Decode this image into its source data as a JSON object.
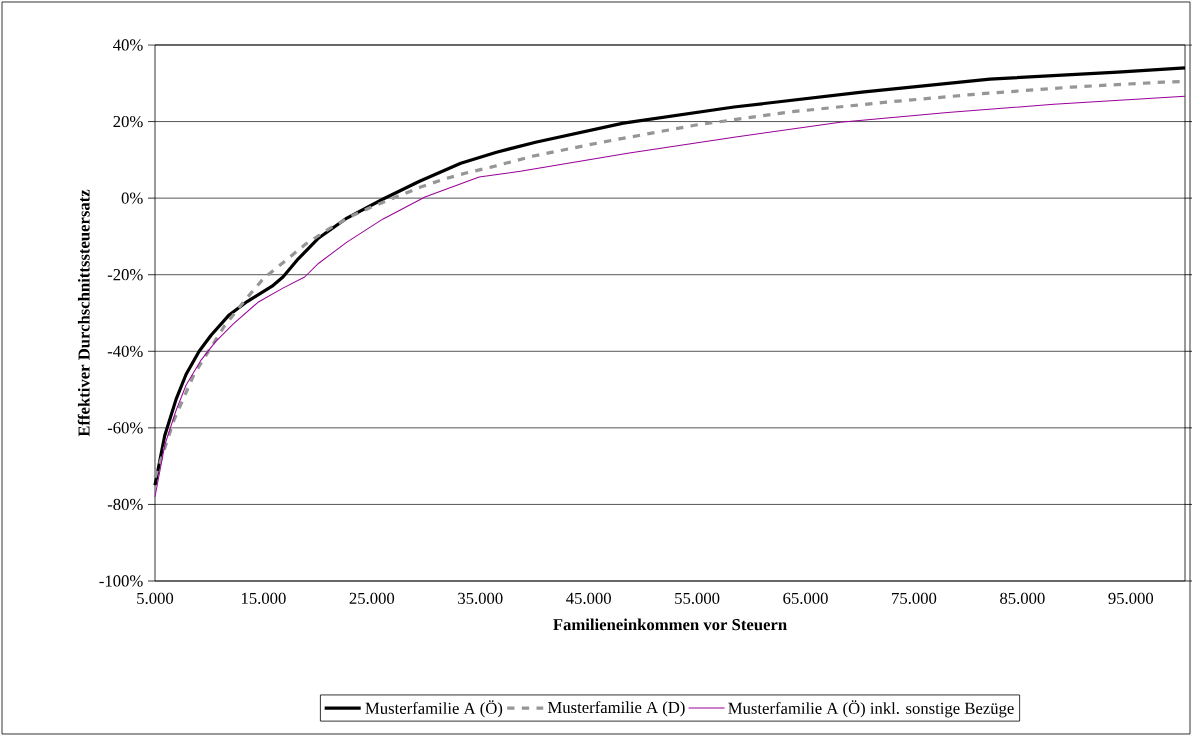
{
  "chart_data": {
    "type": "line",
    "xlabel": "Familieneinkommen vor Steuern",
    "ylabel": "Effektiver Durchschnittssteuersatz",
    "xlim": [
      5000,
      100000
    ],
    "ylim": [
      -100,
      40
    ],
    "xticks": [
      {
        "value": 5000,
        "label": "5.000"
      },
      {
        "value": 15000,
        "label": "15.000"
      },
      {
        "value": 25000,
        "label": "25.000"
      },
      {
        "value": 35000,
        "label": "35.000"
      },
      {
        "value": 45000,
        "label": "45.000"
      },
      {
        "value": 55000,
        "label": "55.000"
      },
      {
        "value": 65000,
        "label": "65.000"
      },
      {
        "value": 75000,
        "label": "75.000"
      },
      {
        "value": 85000,
        "label": "85.000"
      },
      {
        "value": 95000,
        "label": "95.000"
      }
    ],
    "yticks": [
      {
        "value": -100,
        "label": "-100%"
      },
      {
        "value": -80,
        "label": "-80%"
      },
      {
        "value": -60,
        "label": "-60%"
      },
      {
        "value": -40,
        "label": "-40%"
      },
      {
        "value": -20,
        "label": "-20%"
      },
      {
        "value": 0,
        "label": "0%"
      },
      {
        "value": 20,
        "label": "20%"
      },
      {
        "value": 40,
        "label": "40%"
      }
    ],
    "grid": "y",
    "legend": "bottom",
    "marker": "none",
    "series": [
      {
        "name": "Musterfamilie A (Ö)",
        "color": "#000000",
        "line_style": "solid",
        "x": [
          5000,
          5900,
          6950,
          7870,
          9070,
          10170,
          11840,
          13500,
          15800,
          16800,
          18100,
          20100,
          22700,
          26000,
          29400,
          33200,
          36500,
          40100,
          48200,
          58400,
          70200,
          82000,
          93800,
          100000
        ],
        "values": [
          -75,
          -62,
          -52.5,
          -46,
          -40,
          -35.8,
          -30.5,
          -27,
          -23,
          -20.6,
          -16.2,
          -10.4,
          -5.2,
          -0.3,
          4.4,
          9.1,
          12,
          14.6,
          19.6,
          23.8,
          27.7,
          31.1,
          32.9,
          34
        ]
      },
      {
        "name": "Musterfamilie A (D)",
        "color": "#969696",
        "line_style": "dashed",
        "x": [
          5000,
          6750,
          8600,
          11400,
          13200,
          15000,
          17000,
          18900,
          21000,
          23100,
          25400,
          27400,
          29500,
          31700,
          33600,
          36000,
          39900,
          46200,
          54900,
          63500,
          72200,
          80900,
          89500,
          98000,
          100000
        ],
        "values": [
          -73,
          -58,
          -46,
          -33.4,
          -27,
          -21,
          -16.4,
          -12,
          -8.1,
          -4.7,
          -1.8,
          0.5,
          2.9,
          5,
          6.5,
          8.1,
          11,
          14.6,
          19.1,
          22.5,
          25,
          27.2,
          29,
          30.3,
          30.5
        ]
      },
      {
        "name": "Musterfamilie A (Ö) inkl. sonstige Bezüge",
        "color": "#990099",
        "line_style": "solid",
        "x": [
          5000,
          5900,
          6950,
          7870,
          9250,
          10550,
          12200,
          14500,
          16800,
          18800,
          20100,
          22700,
          26000,
          29900,
          34900,
          38700,
          48600,
          58400,
          68200,
          78100,
          87900,
          100000
        ],
        "values": [
          -78,
          -64.5,
          -55.4,
          -48.8,
          -42.3,
          -37.6,
          -32.9,
          -27.2,
          -23.5,
          -20.6,
          -17,
          -11.5,
          -5.5,
          0.3,
          5.5,
          7,
          11.7,
          15.9,
          19.8,
          22.4,
          24.5,
          26.6
        ]
      }
    ]
  }
}
